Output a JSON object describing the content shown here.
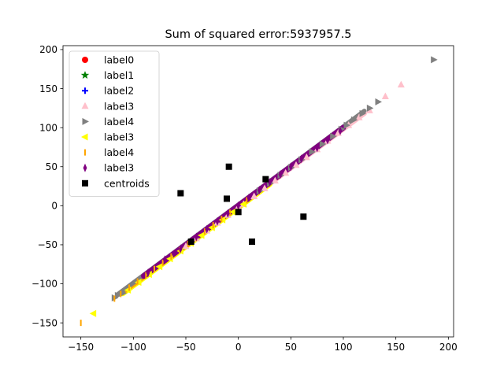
{
  "chart_data": {
    "type": "scatter",
    "title": "Sum of squared error:5937957.5",
    "xlabel": "",
    "ylabel": "",
    "xlim": [
      -167,
      205
    ],
    "ylim": [
      -168,
      205
    ],
    "xticks": [
      -150,
      -100,
      -50,
      0,
      50,
      100,
      150,
      200
    ],
    "yticks": [
      -150,
      -100,
      -50,
      0,
      50,
      100,
      150,
      200
    ],
    "grid": false,
    "legend_position": "top-left",
    "series": [
      {
        "name": "label0",
        "marker": "circle",
        "color": "#ff0000",
        "points": []
      },
      {
        "name": "label1",
        "marker": "star",
        "color": "#008000",
        "points": []
      },
      {
        "name": "label2",
        "marker": "plus",
        "color": "#0000ff",
        "points": []
      },
      {
        "name": "label3",
        "marker": "triangle-up",
        "color": "#ffc0cb",
        "points": [
          [
            155,
            155
          ],
          [
            140,
            140
          ],
          [
            125,
            122
          ],
          [
            115,
            113
          ],
          [
            105,
            103
          ],
          [
            95,
            93
          ],
          [
            85,
            83
          ],
          [
            75,
            72
          ],
          [
            65,
            62
          ],
          [
            55,
            52
          ],
          [
            45,
            42
          ],
          [
            35,
            32
          ],
          [
            25,
            22
          ],
          [
            15,
            12
          ],
          [
            5,
            2
          ],
          [
            0,
            -1
          ],
          [
            -10,
            -12
          ],
          [
            -20,
            -22
          ],
          [
            -30,
            -32
          ],
          [
            -40,
            -42
          ],
          [
            -50,
            -52
          ]
        ]
      },
      {
        "name": "label4",
        "marker": "triangle-right",
        "color": "#808080",
        "points": [
          [
            186,
            187
          ],
          [
            133,
            133
          ],
          [
            125,
            125
          ],
          [
            118,
            118
          ],
          [
            110,
            110
          ],
          [
            103,
            103
          ],
          [
            98,
            98
          ],
          [
            90,
            89
          ],
          [
            80,
            79
          ],
          [
            70,
            69
          ],
          [
            60,
            59
          ],
          [
            50,
            49
          ],
          [
            40,
            39
          ],
          [
            30,
            29
          ],
          [
            20,
            19
          ],
          [
            -110,
            -112
          ],
          [
            -115,
            -115
          ],
          [
            -118,
            -118
          ]
        ]
      },
      {
        "name": "label3",
        "marker": "triangle-left",
        "color": "#ffff00",
        "points": [
          [
            -138,
            -138
          ],
          [
            -105,
            -108
          ],
          [
            -95,
            -98
          ],
          [
            -85,
            -88
          ],
          [
            -75,
            -78
          ],
          [
            -65,
            -68
          ],
          [
            -55,
            -58
          ],
          [
            -45,
            -48
          ],
          [
            -35,
            -38
          ],
          [
            -25,
            -28
          ],
          [
            -15,
            -18
          ],
          [
            -5,
            -8
          ],
          [
            5,
            2
          ]
        ]
      },
      {
        "name": "label4",
        "marker": "vline",
        "color": "#ffa500",
        "points": [
          [
            -150,
            -150
          ],
          [
            -118,
            -119
          ],
          [
            -112,
            -113
          ],
          [
            -104,
            -105
          ],
          [
            -96,
            -97
          ],
          [
            -88,
            -89
          ],
          [
            -80,
            -81
          ],
          [
            -72,
            -73
          ],
          [
            -64,
            -65
          ],
          [
            -56,
            -57
          ],
          [
            -48,
            -49
          ],
          [
            -40,
            -41
          ],
          [
            -32,
            -33
          ],
          [
            -24,
            -25
          ],
          [
            -16,
            -17
          ],
          [
            -8,
            -9
          ],
          [
            0,
            -1
          ],
          [
            8,
            7
          ]
        ]
      },
      {
        "name": "label3",
        "marker": "thin-diamond",
        "color": "#800080",
        "points": [
          [
            -86,
            -86
          ],
          [
            -70,
            -69
          ],
          [
            -55,
            -55
          ],
          [
            -40,
            -40
          ],
          [
            -30,
            -30
          ],
          [
            -20,
            -20
          ],
          [
            -10,
            -10
          ],
          [
            0,
            0
          ],
          [
            10,
            10
          ],
          [
            20,
            20
          ],
          [
            30,
            30
          ],
          [
            40,
            40
          ],
          [
            50,
            50
          ],
          [
            60,
            60
          ],
          [
            75,
            74
          ],
          [
            85,
            84
          ],
          [
            97,
            96
          ]
        ]
      },
      {
        "name": "centroids",
        "marker": "square",
        "color": "#000000",
        "points": [
          [
            -9,
            50
          ],
          [
            -55,
            16
          ],
          [
            -11,
            9
          ],
          [
            26,
            34
          ],
          [
            0,
            -8
          ],
          [
            62,
            -14
          ],
          [
            -45,
            -46
          ],
          [
            13,
            -46
          ]
        ]
      }
    ],
    "bands": [
      {
        "color": "#ffc0cb",
        "x_from": -105,
        "x_to": 120,
        "offset": -1.8,
        "width": 3.2
      },
      {
        "color": "#ffff00",
        "x_from": -110,
        "x_to": 30,
        "offset": -2.6,
        "width": 3.2
      },
      {
        "color": "#ffa500",
        "x_from": -110,
        "x_to": 40,
        "offset": -1.4,
        "width": 2.6
      },
      {
        "color": "#808080",
        "x_from": -115,
        "x_to": 120,
        "offset": 1.4,
        "width": 2.8
      },
      {
        "color": "#800080",
        "x_from": -90,
        "x_to": 100,
        "offset": 0.0,
        "width": 3.6
      }
    ]
  }
}
